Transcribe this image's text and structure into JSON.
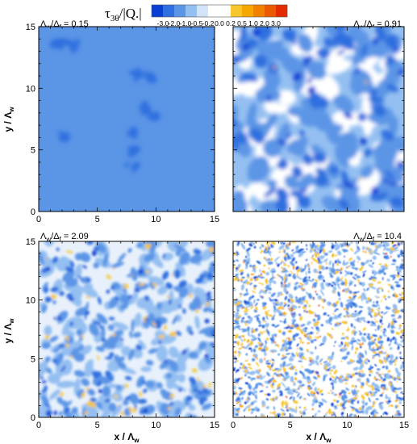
{
  "colorbar": {
    "title_tau": "τ",
    "title_sub": "3θ",
    "title_rest": "/|Q.|",
    "levels": [
      "-3.0",
      "-2.0",
      "-1.0",
      "-0.5",
      "-0.2",
      "0.0",
      "0.2",
      "0.5",
      "1.0",
      "2.0",
      "3.0"
    ],
    "colors": [
      "#0a3fd6",
      "#2f6fdf",
      "#5b95e6",
      "#94bff1",
      "#d2e4f8",
      "#ffffff",
      "#ffffff",
      "#f7c62a",
      "#f5a800",
      "#f08200",
      "#ea5a00",
      "#e22b00"
    ]
  },
  "axes": {
    "x_label_main": "x / Λ",
    "x_label_sub": "w",
    "y_label_main": "y / Λ",
    "y_label_sub": "w",
    "ticks": [
      "0",
      "5",
      "10",
      "15"
    ]
  },
  "chart_data": [
    {
      "type": "heatmap",
      "panel": "top-left",
      "title": {
        "pre": "Λ",
        "s1": "w",
        "mid": "/Δ",
        "s2": "f",
        "post": " = 0.15"
      },
      "xlim": [
        0,
        15
      ],
      "ylim": [
        0,
        15
      ],
      "background_level": "-1.0 to -0.5",
      "features": [
        {
          "x": 1.7,
          "y": 13.5,
          "level": "-2.0 to -1.0"
        },
        {
          "x": 3.0,
          "y": 13.6,
          "level": "-2.0 to -1.0"
        },
        {
          "x": 8.4,
          "y": 11.2,
          "level": "-2.0 to -1.0"
        },
        {
          "x": 9.6,
          "y": 10.9,
          "level": "-2.0 to -1.0"
        },
        {
          "x": 9.0,
          "y": 8.3,
          "level": "-2.0 to -1.0"
        },
        {
          "x": 10.0,
          "y": 7.8,
          "level": "-2.0 to -1.0"
        },
        {
          "x": 8.1,
          "y": 6.5,
          "level": "-2.0 to -1.0"
        },
        {
          "x": 8.0,
          "y": 5.0,
          "level": "-2.0 to -1.0"
        },
        {
          "x": 7.9,
          "y": 3.6,
          "level": "-2.0 to -1.0"
        },
        {
          "x": 2.3,
          "y": 6.1,
          "level": "-2.0 to -1.0"
        }
      ]
    },
    {
      "type": "heatmap",
      "panel": "top-right",
      "title": {
        "pre": "Λ",
        "s1": "w",
        "mid": "/Δ",
        "s2": "f",
        "post": " = 0.91"
      },
      "xlim": [
        0,
        15
      ],
      "ylim": [
        0,
        15
      ],
      "value_range": [
        -3.0,
        0.5
      ]
    },
    {
      "type": "heatmap",
      "panel": "bottom-left",
      "title": {
        "pre": "Λ",
        "s1": "w",
        "mid": "/Δ",
        "s2": "f",
        "post": " = 2.09"
      },
      "xlim": [
        0,
        15
      ],
      "ylim": [
        0,
        15
      ],
      "value_range": [
        -3.0,
        1.0
      ]
    },
    {
      "type": "heatmap",
      "panel": "bottom-right",
      "title": {
        "pre": "Λ",
        "s1": "w",
        "mid": "/Δ",
        "s2": "f",
        "post": " = 10.4"
      },
      "xlim": [
        0,
        15
      ],
      "ylim": [
        0,
        15
      ],
      "value_range": [
        -3.0,
        3.0
      ]
    }
  ]
}
